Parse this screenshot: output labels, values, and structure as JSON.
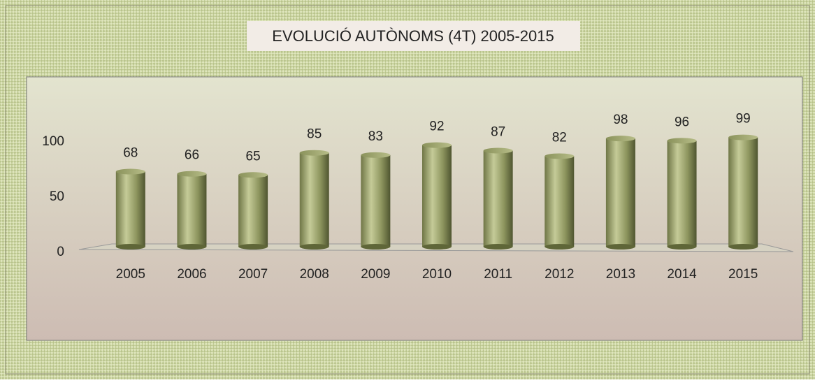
{
  "chart_data": {
    "type": "bar",
    "title": "EVOLUCIÓ AUTÒNOMS (4T) 2005-2015",
    "categories": [
      "2005",
      "2006",
      "2007",
      "2008",
      "2009",
      "2010",
      "2011",
      "2012",
      "2013",
      "2014",
      "2015"
    ],
    "values": [
      68,
      66,
      65,
      85,
      83,
      92,
      87,
      82,
      98,
      96,
      99
    ],
    "color": "#9aa36a",
    "ylim": [
      0,
      100
    ],
    "yticks": [
      0,
      50,
      100
    ],
    "grid": false
  }
}
